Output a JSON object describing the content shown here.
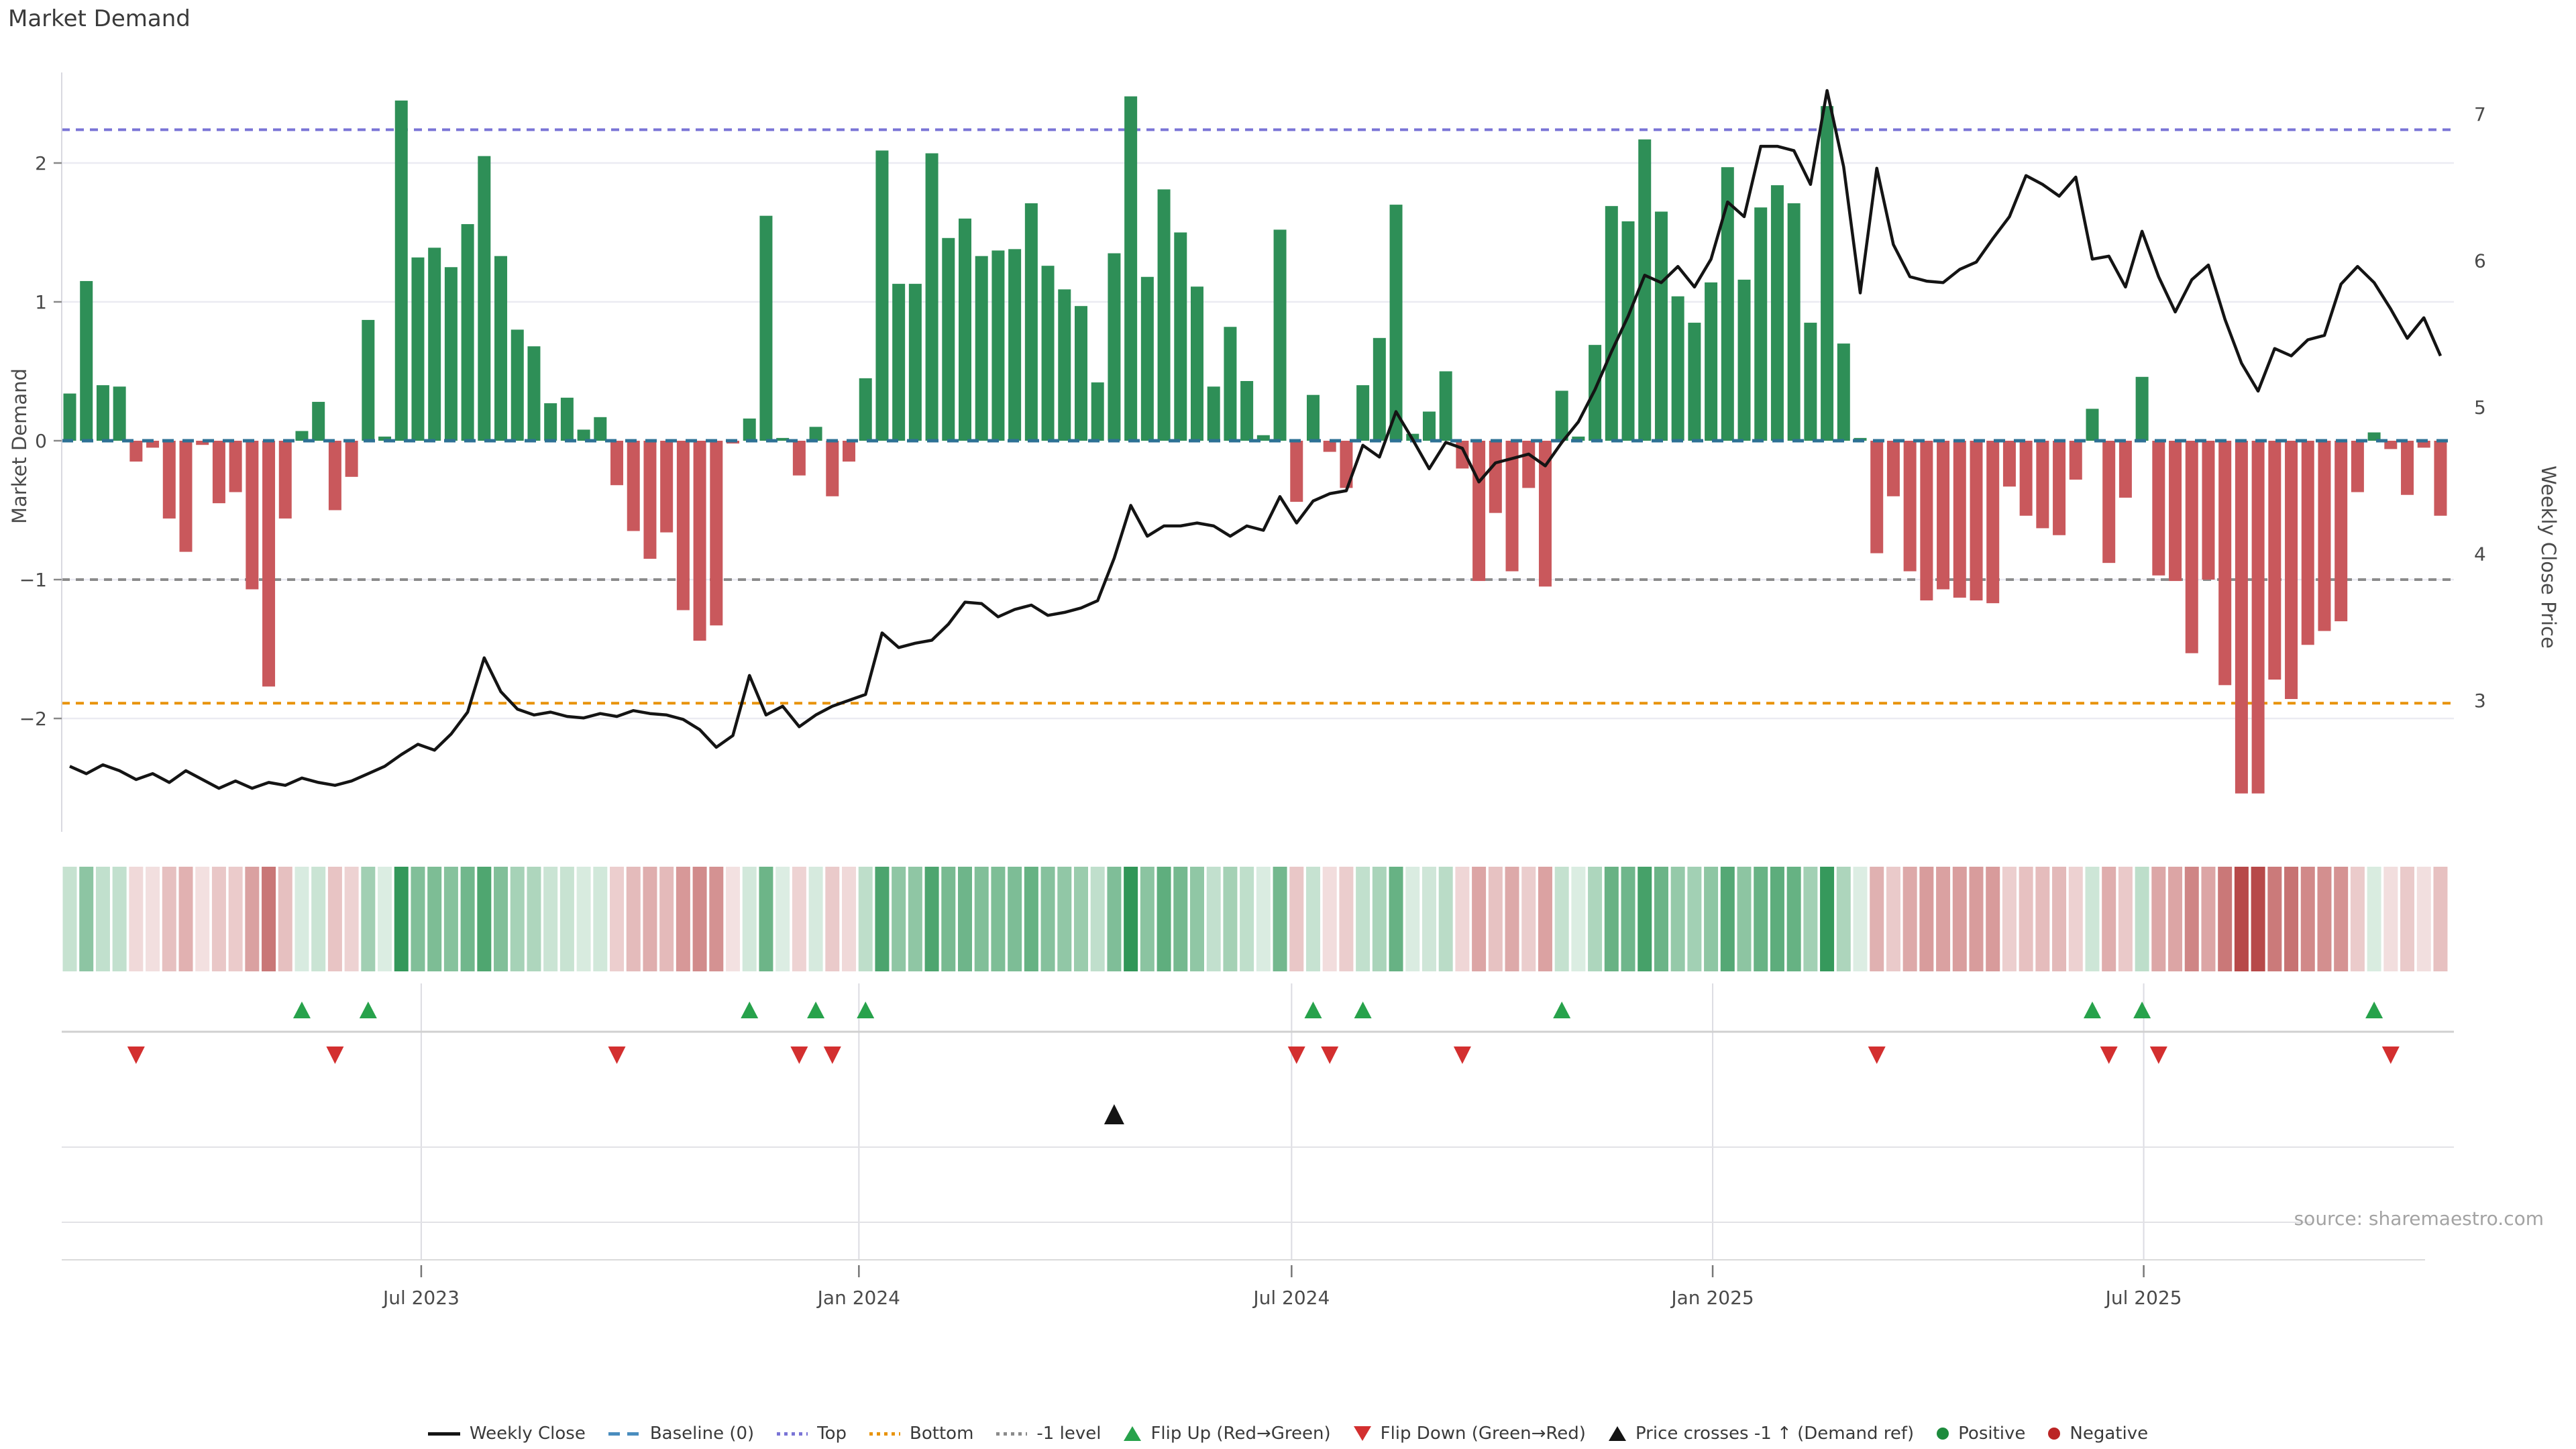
{
  "title": "Market Demand",
  "source_text": "source: sharemaestro.com",
  "axes": {
    "left_label": "Market Demand",
    "right_label": "Weekly Close Price",
    "left_ticks": [
      "2",
      "1",
      "0",
      "−1",
      "−2"
    ],
    "right_ticks": [
      "7",
      "6",
      "5",
      "4",
      "3"
    ],
    "x_ticks": [
      "Jul 2023",
      "Jan 2024",
      "Jul 2024",
      "Jan 2025",
      "Jul 2025"
    ]
  },
  "legend": [
    {
      "swatch": "line",
      "color": "#141414",
      "label": "Weekly Close"
    },
    {
      "swatch": "dash",
      "color": "#4a8dbe",
      "label": "Baseline (0)"
    },
    {
      "swatch": "dots",
      "color": "#7a74d6",
      "label": "Top"
    },
    {
      "swatch": "dots",
      "color": "#e8930b",
      "label": "Bottom"
    },
    {
      "swatch": "dots",
      "color": "#8b8b8b",
      "label": "-1 level"
    },
    {
      "swatch": "tri-up",
      "color": "#27a24b",
      "label": "Flip Up (Red→Green)"
    },
    {
      "swatch": "tri-down",
      "color": "#d32f2f",
      "label": "Flip Down (Green→Red)"
    },
    {
      "swatch": "tri-up",
      "color": "#141414",
      "label": "Price crosses -1 ↑ (Demand ref)"
    },
    {
      "swatch": "circle",
      "color": "#1d8b3d",
      "label": "Positive"
    },
    {
      "swatch": "circle",
      "color": "#bb2525",
      "label": "Negative"
    }
  ],
  "colors": {
    "bar_positive": "#2e8f57",
    "bar_negative": "#c9585c",
    "price_line": "#141414",
    "baseline": "#2d7195",
    "top": "#7a74d6",
    "bottom": "#e8930b",
    "minus1": "#8b8b8b",
    "flip_up": "#27a24b",
    "flip_down": "#d32f2f",
    "price_cross": "#141414",
    "heat_pos": "#2c9454",
    "heat_neg": "#b74848",
    "grid": "#ebebf2",
    "panel_grid": "#dcdce2",
    "tick_text": "#4a4a4a",
    "spine": "#d9d9e0"
  },
  "chart_data": {
    "type": "bar+line",
    "title": "Market Demand",
    "x_interval": "weekly",
    "start_date": "2023-02-06",
    "n_weeks": 144,
    "x_tick_labels": [
      "Jul 2023",
      "Jan 2024",
      "Jul 2024",
      "Jan 2025",
      "Jul 2025"
    ],
    "x_tick_week_index": [
      21.2,
      47.6,
      73.7,
      99.1,
      125.1
    ],
    "ylabel_left": "Market Demand",
    "ylabel_right": "Weekly Close Price",
    "ylim_left": [
      -2.82,
      2.65
    ],
    "ylim_right": [
      2.1,
      7.28
    ],
    "reference_lines": {
      "baseline": 0,
      "top": 2.24,
      "bottom": -1.89,
      "minus1_level": -1
    },
    "legend_position": "bottom",
    "grid": "horizontal-only",
    "series": [
      {
        "name": "Market Demand",
        "type": "bar",
        "axis": "left",
        "values": [
          0.34,
          1.15,
          0.4,
          0.39,
          -0.15,
          -0.05,
          -0.56,
          -0.8,
          -0.03,
          -0.45,
          -0.37,
          -1.07,
          -1.77,
          -0.56,
          0.07,
          0.28,
          -0.5,
          -0.26,
          0.87,
          0.03,
          2.45,
          1.32,
          1.39,
          1.25,
          1.56,
          2.05,
          1.33,
          0.8,
          0.68,
          0.27,
          0.31,
          0.08,
          0.17,
          -0.32,
          -0.65,
          -0.85,
          -0.66,
          -1.22,
          -1.44,
          -1.33,
          -0.02,
          0.16,
          1.62,
          0.02,
          -0.25,
          0.1,
          -0.4,
          -0.15,
          0.45,
          2.09,
          1.13,
          1.13,
          2.07,
          1.46,
          1.6,
          1.33,
          1.37,
          1.38,
          1.71,
          1.26,
          1.09,
          0.97,
          0.42,
          1.35,
          2.48,
          1.18,
          1.81,
          1.5,
          1.11,
          0.39,
          0.82,
          0.43,
          0.04,
          1.52,
          -0.44,
          0.33,
          -0.08,
          -0.34,
          0.4,
          0.74,
          1.7,
          0.05,
          0.21,
          0.5,
          -0.2,
          -1.01,
          -0.52,
          -0.94,
          -0.34,
          -1.05,
          0.36,
          0.03,
          0.69,
          1.69,
          1.58,
          2.17,
          1.65,
          1.04,
          0.85,
          1.14,
          1.97,
          1.16,
          1.68,
          1.84,
          1.71,
          0.85,
          2.41,
          0.7,
          0.02,
          -0.81,
          -0.4,
          -0.94,
          -1.15,
          -1.07,
          -1.13,
          -1.15,
          -1.17,
          -0.33,
          -0.54,
          -0.63,
          -0.68,
          -0.28,
          0.23,
          -0.88,
          -0.41,
          0.46,
          -0.97,
          -1.01,
          -1.53,
          -1.0,
          -1.76,
          -2.54,
          -2.54,
          -1.72,
          -1.86,
          -1.47,
          -1.37,
          -1.3,
          -0.37,
          0.06,
          -0.06,
          -0.39,
          -0.05,
          -0.54
        ]
      },
      {
        "name": "Weekly Close",
        "type": "line",
        "axis": "right",
        "values": [
          2.55,
          2.5,
          2.56,
          2.52,
          2.46,
          2.5,
          2.44,
          2.52,
          2.46,
          2.4,
          2.45,
          2.4,
          2.44,
          2.42,
          2.47,
          2.44,
          2.42,
          2.45,
          2.5,
          2.55,
          2.63,
          2.7,
          2.66,
          2.77,
          2.92,
          3.29,
          3.06,
          2.94,
          2.9,
          2.92,
          2.89,
          2.88,
          2.91,
          2.89,
          2.93,
          2.91,
          2.9,
          2.87,
          2.8,
          2.68,
          2.76,
          3.17,
          2.9,
          2.96,
          2.82,
          2.9,
          2.96,
          3.0,
          3.04,
          3.46,
          3.36,
          3.39,
          3.41,
          3.52,
          3.67,
          3.66,
          3.57,
          3.62,
          3.65,
          3.58,
          3.6,
          3.63,
          3.68,
          3.97,
          4.33,
          4.12,
          4.19,
          4.19,
          4.21,
          4.19,
          4.12,
          4.19,
          4.16,
          4.39,
          4.21,
          4.36,
          4.41,
          4.43,
          4.74,
          4.66,
          4.97,
          4.78,
          4.58,
          4.76,
          4.72,
          4.49,
          4.62,
          4.65,
          4.68,
          4.6,
          4.76,
          4.9,
          5.12,
          5.38,
          5.62,
          5.9,
          5.85,
          5.96,
          5.82,
          6.01,
          6.4,
          6.3,
          6.78,
          6.78,
          6.75,
          6.52,
          7.16,
          6.64,
          5.78,
          6.63,
          6.11,
          5.89,
          5.86,
          5.85,
          5.94,
          5.99,
          6.15,
          6.3,
          6.58,
          6.52,
          6.44,
          6.57,
          6.01,
          6.03,
          5.82,
          6.2,
          5.89,
          5.65,
          5.87,
          5.97,
          5.6,
          5.3,
          5.11,
          5.4,
          5.35,
          5.46,
          5.49,
          5.84,
          5.96,
          5.85,
          5.67,
          5.47,
          5.61,
          5.35
        ]
      }
    ],
    "heatmap_strip": {
      "source_series": "Market Demand",
      "note": "color intensity = |value|, green positive / red negative"
    },
    "markers": {
      "flip_up_week_index": [
        14,
        18,
        41,
        45,
        48,
        75,
        78,
        90,
        122,
        125,
        139
      ],
      "flip_down_week_index": [
        4,
        16,
        33,
        44,
        46,
        74,
        76,
        84,
        109,
        123,
        126,
        140
      ],
      "price_cross_week_index": [
        63
      ]
    }
  }
}
